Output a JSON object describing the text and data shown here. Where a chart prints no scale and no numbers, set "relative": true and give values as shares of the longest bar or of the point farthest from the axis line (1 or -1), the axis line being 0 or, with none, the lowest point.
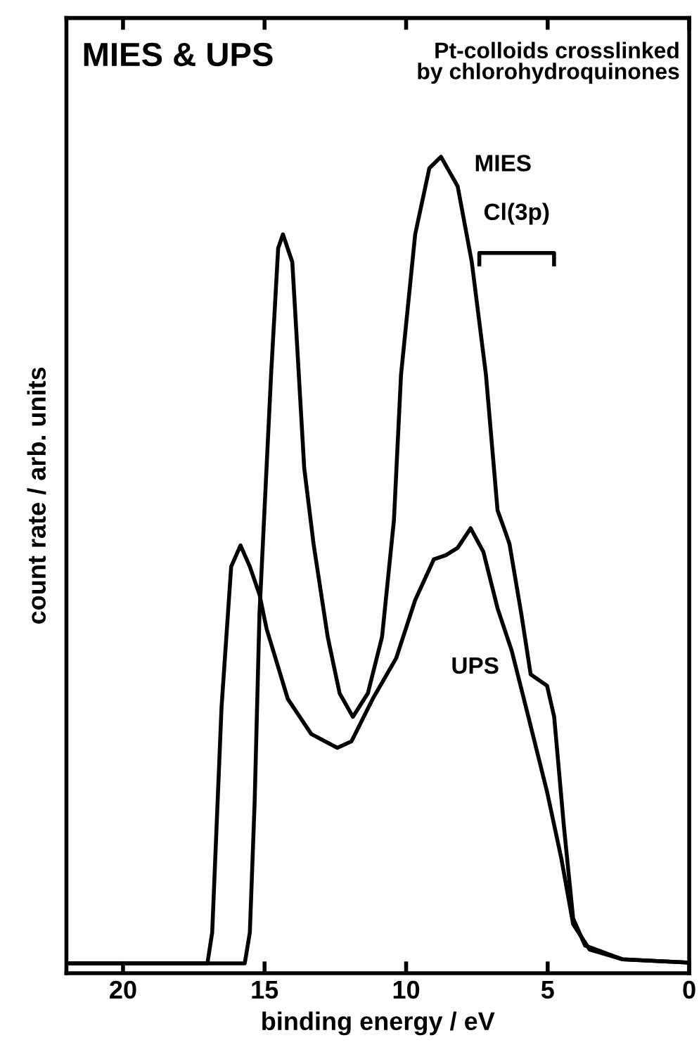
{
  "chart_data": {
    "type": "line",
    "title": "MIES & UPS",
    "subtitle": "Pt-colloids crosslinked\nby chlorohydroquinones",
    "xlabel": "binding energy / eV",
    "ylabel": "count rate / arb. units",
    "relative": true,
    "xlim": [
      22,
      0
    ],
    "xticks": [
      20,
      15,
      10,
      5,
      0
    ],
    "grid": false,
    "legend": false,
    "line_style": "solid",
    "marker": "none",
    "annotations": [
      "Cl(3p)"
    ],
    "series": [
      {
        "name": "MIES",
        "color": "#000000",
        "x": [
          22,
          15.7,
          15.52,
          15.35,
          15.18,
          15.02,
          14.77,
          14.52,
          14.35,
          14.02,
          13.6,
          13.27,
          12.77,
          12.35,
          11.88,
          11.35,
          10.85,
          10.43,
          10.18,
          9.68,
          9.18,
          8.77,
          8.18,
          7.68,
          7.18,
          6.77,
          6.52,
          6.35,
          5.93,
          5.6,
          5.02,
          4.77,
          4.43,
          4.1,
          3.68,
          2.35,
          0
        ],
        "values": [
          0.012,
          0.012,
          0.05,
          0.21,
          0.44,
          0.555,
          0.733,
          0.888,
          0.905,
          0.871,
          0.619,
          0.526,
          0.412,
          0.343,
          0.314,
          0.343,
          0.412,
          0.555,
          0.733,
          0.905,
          0.986,
          1.0,
          0.964,
          0.871,
          0.733,
          0.567,
          0.543,
          0.526,
          0.44,
          0.366,
          0.352,
          0.314,
          0.181,
          0.067,
          0.034,
          0.017,
          0.013
        ]
      },
      {
        "name": "UPS",
        "color": "#000000",
        "x": [
          22,
          17.02,
          16.85,
          16.52,
          16.18,
          15.85,
          15.52,
          15.18,
          14.93,
          14.18,
          13.35,
          12.43,
          11.93,
          11.18,
          10.35,
          9.68,
          9.02,
          8.6,
          8.18,
          7.72,
          7.27,
          6.77,
          6.27,
          5.68,
          5.02,
          4.52,
          4.1,
          3.52,
          2.35,
          0
        ],
        "values": [
          0.012,
          0.012,
          0.05,
          0.326,
          0.498,
          0.524,
          0.498,
          0.464,
          0.422,
          0.336,
          0.293,
          0.276,
          0.284,
          0.336,
          0.386,
          0.457,
          0.507,
          0.512,
          0.521,
          0.545,
          0.516,
          0.447,
          0.395,
          0.314,
          0.222,
          0.141,
          0.06,
          0.029,
          0.017,
          0.013
        ]
      }
    ]
  }
}
